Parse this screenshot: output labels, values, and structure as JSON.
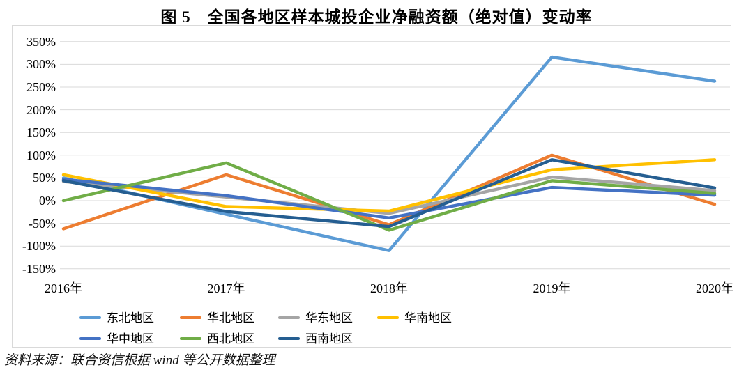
{
  "title": "图 5　全国各地区样本城投企业净融资额（绝对值）变动率",
  "source": "资料来源：联合资信根据 wind 等公开数据整理",
  "chart_data": {
    "type": "line",
    "categories": [
      "2016年",
      "2017年",
      "2018年",
      "2019年",
      "2020年"
    ],
    "series": [
      {
        "name": "东北地区",
        "color": "#5B9BD5",
        "values": [
          50,
          -30,
          -110,
          316,
          263
        ]
      },
      {
        "name": "华北地区",
        "color": "#ED7D31",
        "values": [
          -62,
          57,
          -53,
          100,
          -8
        ]
      },
      {
        "name": "华东地区",
        "color": "#A5A5A5",
        "values": [
          42,
          8,
          -28,
          52,
          22
        ]
      },
      {
        "name": "华南地区",
        "color": "#FFC000",
        "values": [
          57,
          -13,
          -23,
          68,
          90
        ]
      },
      {
        "name": "华中地区",
        "color": "#4472C4",
        "values": [
          47,
          11,
          -38,
          29,
          12
        ]
      },
      {
        "name": "西北地区",
        "color": "#70AD47",
        "values": [
          0,
          83,
          -65,
          44,
          16
        ]
      },
      {
        "name": "西南地区",
        "color": "#255E91",
        "values": [
          44,
          -24,
          -57,
          90,
          28
        ]
      }
    ],
    "ylim": [
      -150,
      350
    ],
    "ytick_step": 50,
    "ytick_labels": [
      "350%",
      "300%",
      "250%",
      "200%",
      "150%",
      "100%",
      "50%",
      "0%",
      "-50%",
      "-100%",
      "-150%"
    ],
    "grid": true,
    "gridline_color": "#d9d9d9",
    "legend_position": "bottom"
  }
}
